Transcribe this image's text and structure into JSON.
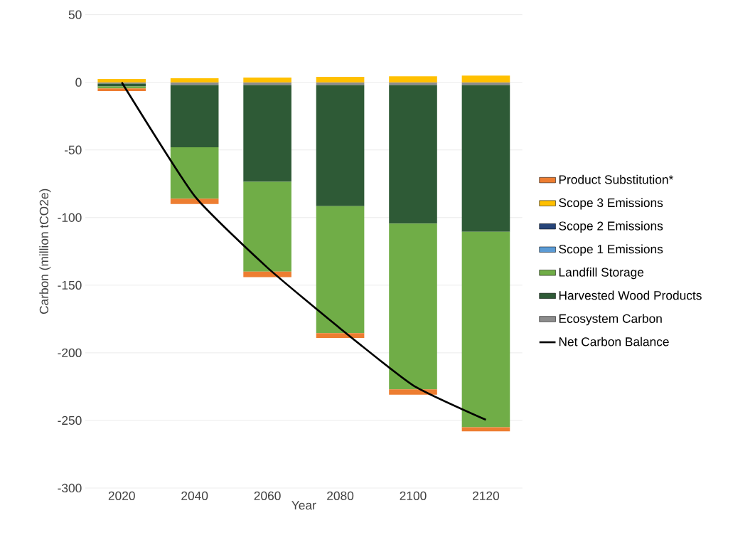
{
  "chart_data": {
    "type": "bar",
    "stacked": true,
    "xlabel": "Year",
    "ylabel": "Carbon (million tCO2e)",
    "categories": [
      "2020",
      "2040",
      "2060",
      "2080",
      "2100",
      "2120"
    ],
    "ylim": [
      -300,
      50
    ],
    "yticks": [
      -300,
      -250,
      -200,
      -150,
      -100,
      -50,
      0,
      50
    ],
    "grid": "y",
    "legend": "right",
    "series": [
      {
        "name": "Ecosystem Carbon",
        "color": "#8c8c8c",
        "values": [
          -1,
          -2,
          -2,
          -2,
          -2,
          -2
        ]
      },
      {
        "name": "Harvested Wood Products",
        "color": "#2e5a36",
        "values": [
          -2,
          -46,
          -71.5,
          -89.5,
          -102.5,
          -108.5
        ]
      },
      {
        "name": "Landfill Storage",
        "color": "#70ad47",
        "values": [
          -1.5,
          -38,
          -66.5,
          -94,
          -122.5,
          -144.5
        ]
      },
      {
        "name": "Scope 1 Emissions",
        "color": "#5b9bd5",
        "values": [
          0,
          0,
          0,
          0,
          0,
          0
        ]
      },
      {
        "name": "Scope 2 Emissions",
        "color": "#264478",
        "values": [
          0,
          0,
          0,
          0,
          0,
          0
        ]
      },
      {
        "name": "Scope 3 Emissions",
        "color": "#ffc000",
        "values": [
          2.5,
          3,
          3.5,
          4,
          4.5,
          5
        ]
      },
      {
        "name": "Product Substitution*",
        "color": "#ed7d31",
        "values": [
          -2,
          -4,
          -4,
          -3.5,
          -4,
          -3
        ]
      },
      {
        "name": "Net Carbon Balance",
        "type": "line",
        "color": "#000000",
        "values": [
          0,
          -84,
          -137,
          -182,
          -224,
          -249.5
        ]
      }
    ]
  }
}
